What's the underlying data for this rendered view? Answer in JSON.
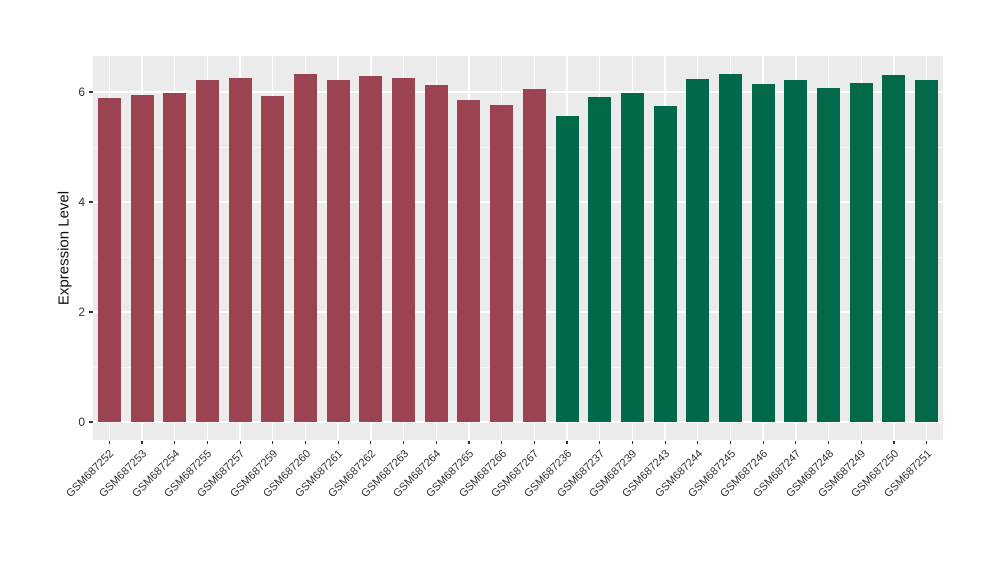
{
  "chart_data": {
    "type": "bar",
    "title": "",
    "xlabel": "",
    "ylabel": "Expression Level",
    "ylim": [
      0,
      6.66
    ],
    "yticks": [
      0,
      2,
      4,
      6
    ],
    "grid": "on",
    "legend": "none",
    "panel_background": "#EBEBEB",
    "gridline_color": "#FFFFFF",
    "axis_text_color": "#333333",
    "group_colors": {
      "group1": "#9C4351",
      "group2": "#016849"
    },
    "bars": [
      {
        "label": "GSM687252",
        "value": 5.9,
        "group": "group1"
      },
      {
        "label": "GSM687253",
        "value": 5.95,
        "group": "group1"
      },
      {
        "label": "GSM687254",
        "value": 5.98,
        "group": "group1"
      },
      {
        "label": "GSM687255",
        "value": 6.21,
        "group": "group1"
      },
      {
        "label": "GSM687257",
        "value": 6.25,
        "group": "group1"
      },
      {
        "label": "GSM687259",
        "value": 5.92,
        "group": "group1"
      },
      {
        "label": "GSM687260",
        "value": 6.33,
        "group": "group1"
      },
      {
        "label": "GSM687261",
        "value": 6.21,
        "group": "group1"
      },
      {
        "label": "GSM687262",
        "value": 6.3,
        "group": "group1"
      },
      {
        "label": "GSM687263",
        "value": 6.26,
        "group": "group1"
      },
      {
        "label": "GSM687264",
        "value": 6.13,
        "group": "group1"
      },
      {
        "label": "GSM687265",
        "value": 5.86,
        "group": "group1"
      },
      {
        "label": "GSM687266",
        "value": 5.77,
        "group": "group1"
      },
      {
        "label": "GSM687267",
        "value": 6.05,
        "group": "group1"
      },
      {
        "label": "GSM687236",
        "value": 5.56,
        "group": "group2"
      },
      {
        "label": "GSM687237",
        "value": 5.91,
        "group": "group2"
      },
      {
        "label": "GSM687239",
        "value": 5.99,
        "group": "group2"
      },
      {
        "label": "GSM687243",
        "value": 5.75,
        "group": "group2"
      },
      {
        "label": "GSM687244",
        "value": 6.24,
        "group": "group2"
      },
      {
        "label": "GSM687245",
        "value": 6.33,
        "group": "group2"
      },
      {
        "label": "GSM687246",
        "value": 6.15,
        "group": "group2"
      },
      {
        "label": "GSM687247",
        "value": 6.22,
        "group": "group2"
      },
      {
        "label": "GSM687248",
        "value": 6.07,
        "group": "group2"
      },
      {
        "label": "GSM687249",
        "value": 6.16,
        "group": "group2"
      },
      {
        "label": "GSM687250",
        "value": 6.31,
        "group": "group2"
      },
      {
        "label": "GSM687251",
        "value": 6.21,
        "group": "group2"
      }
    ]
  }
}
